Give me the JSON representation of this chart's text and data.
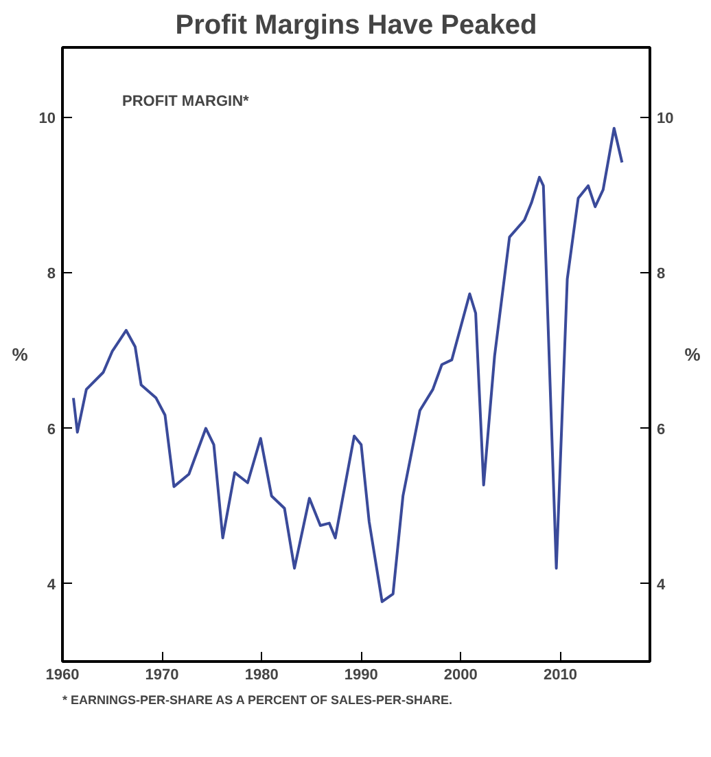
{
  "chart_data": {
    "type": "line",
    "title": "Profit Margins Have Peaked",
    "ylabel": "%",
    "y2label": "%",
    "annotations": [
      "PROFIT MARGIN*",
      "* EARNINGS-PER-SHARE AS A PERCENT OF SALES-PER-SHARE."
    ],
    "xlim": [
      1960,
      2019
    ],
    "xticks": [
      1960,
      1970,
      1980,
      1990,
      2000,
      2010
    ],
    "ylim": [
      3,
      10.9
    ],
    "yticks": [
      4,
      6,
      8,
      10
    ],
    "y2lim": [
      3,
      10.9
    ],
    "y2ticks": [
      4,
      6,
      8,
      10
    ],
    "grid": false,
    "marker": "none",
    "line_style": "solid",
    "series": [
      {
        "color": "#3a4a9a",
        "x": [
          1961.1,
          1961.5,
          1962.4,
          1964.1,
          1965.0,
          1966.4,
          1967.3,
          1967.9,
          1969.4,
          1970.3,
          1971.2,
          1972.7,
          1974.4,
          1975.2,
          1976.1,
          1977.3,
          1978.6,
          1979.9,
          1981.0,
          1982.3,
          1983.3,
          1984.8,
          1985.9,
          1986.8,
          1987.4,
          1989.3,
          1990.0,
          1990.8,
          1992.1,
          1993.2,
          1994.2,
          1995.9,
          1997.2,
          1998.1,
          1999.1,
          2000.9,
          2001.5,
          2002.3,
          2003.4,
          2004.9,
          2006.4,
          2007.1,
          2007.9,
          2008.3,
          2009.6,
          2010.7,
          2011.8,
          2012.8,
          2013.5,
          2014.3,
          2015.4,
          2016.2
        ],
        "values": [
          6.39,
          5.95,
          6.5,
          6.72,
          6.99,
          7.26,
          7.05,
          6.56,
          6.39,
          6.17,
          5.25,
          5.41,
          6.0,
          5.79,
          4.59,
          5.43,
          5.3,
          5.87,
          5.13,
          4.97,
          4.2,
          5.1,
          4.75,
          4.78,
          4.59,
          5.9,
          5.79,
          4.8,
          3.77,
          3.87,
          5.13,
          6.23,
          6.5,
          6.82,
          6.88,
          7.73,
          7.48,
          5.27,
          6.93,
          8.46,
          8.68,
          8.9,
          9.23,
          9.12,
          4.2,
          7.92,
          8.96,
          9.12,
          8.85,
          9.07,
          9.86,
          9.42
        ]
      }
    ]
  }
}
